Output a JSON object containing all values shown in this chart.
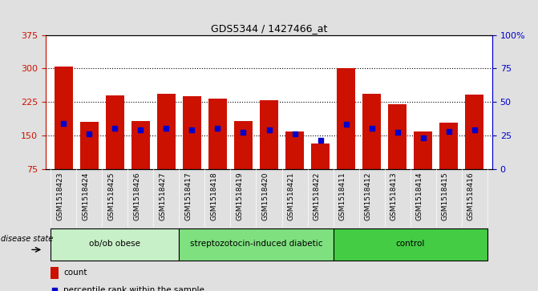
{
  "title": "GDS5344 / 1427466_at",
  "samples": [
    "GSM1518423",
    "GSM1518424",
    "GSM1518425",
    "GSM1518426",
    "GSM1518427",
    "GSM1518417",
    "GSM1518418",
    "GSM1518419",
    "GSM1518420",
    "GSM1518421",
    "GSM1518422",
    "GSM1518411",
    "GSM1518412",
    "GSM1518413",
    "GSM1518414",
    "GSM1518415",
    "GSM1518416"
  ],
  "counts": [
    305,
    180,
    240,
    182,
    243,
    237,
    232,
    182,
    228,
    158,
    132,
    300,
    243,
    220,
    158,
    178,
    242
  ],
  "percentiles": [
    34,
    26,
    30,
    29,
    30,
    29,
    30,
    27,
    29,
    26,
    21,
    33,
    30,
    27,
    23,
    28,
    29
  ],
  "groups": [
    {
      "label": "ob/ob obese",
      "start": 0,
      "end": 5,
      "color": "#c8f0c8"
    },
    {
      "label": "streptozotocin-induced diabetic",
      "start": 5,
      "end": 11,
      "color": "#7fe07f"
    },
    {
      "label": "control",
      "start": 11,
      "end": 17,
      "color": "#44cc44"
    }
  ],
  "bar_color": "#cc1100",
  "marker_color": "#0000cc",
  "left_ylim": [
    75,
    375
  ],
  "right_ylim": [
    0,
    100
  ],
  "left_yticks": [
    75,
    150,
    225,
    300,
    375
  ],
  "right_yticks": [
    0,
    25,
    50,
    75,
    100
  ],
  "grid_values": [
    150,
    225,
    300
  ],
  "background_color": "#e0e0e0",
  "plot_bg_color": "#ffffff",
  "xtick_bg_color": "#d0d0d0"
}
